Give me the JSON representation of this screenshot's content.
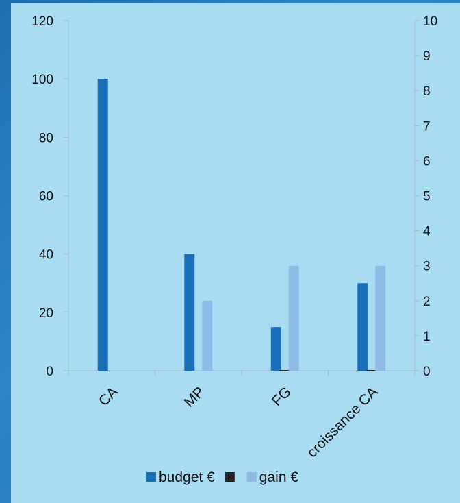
{
  "colors": {
    "background": "#a8dcf2",
    "budget": "#1a70b8",
    "gain": "#8dbbe6",
    "second_series": "#222222",
    "axis": "#a6bcc8"
  },
  "chart_data": {
    "type": "bar",
    "categories": [
      "CA",
      "MP",
      "FG",
      "croissance CA"
    ],
    "series": [
      {
        "name": "budget €",
        "axis": "left",
        "values": [
          100,
          40,
          15,
          30
        ]
      },
      {
        "name": "",
        "axis": "right",
        "values": [
          0,
          0,
          0.02,
          0.02
        ]
      },
      {
        "name": "gain €",
        "axis": "right",
        "values": [
          0,
          2,
          3,
          3
        ]
      }
    ],
    "y_left": {
      "range": [
        0,
        120
      ],
      "ticks": [
        0,
        20,
        40,
        60,
        80,
        100,
        120
      ]
    },
    "y_right": {
      "range": [
        0,
        10
      ],
      "ticks": [
        0,
        1,
        2,
        3,
        4,
        5,
        6,
        7,
        8,
        9,
        10
      ]
    },
    "grid": false,
    "legend": {
      "position": "bottom",
      "entries": [
        {
          "label": "budget €",
          "color": "#1a70b8"
        },
        {
          "label": "",
          "color": "#222222"
        },
        {
          "label": "gain €",
          "color": "#8dbbe6"
        }
      ]
    }
  }
}
